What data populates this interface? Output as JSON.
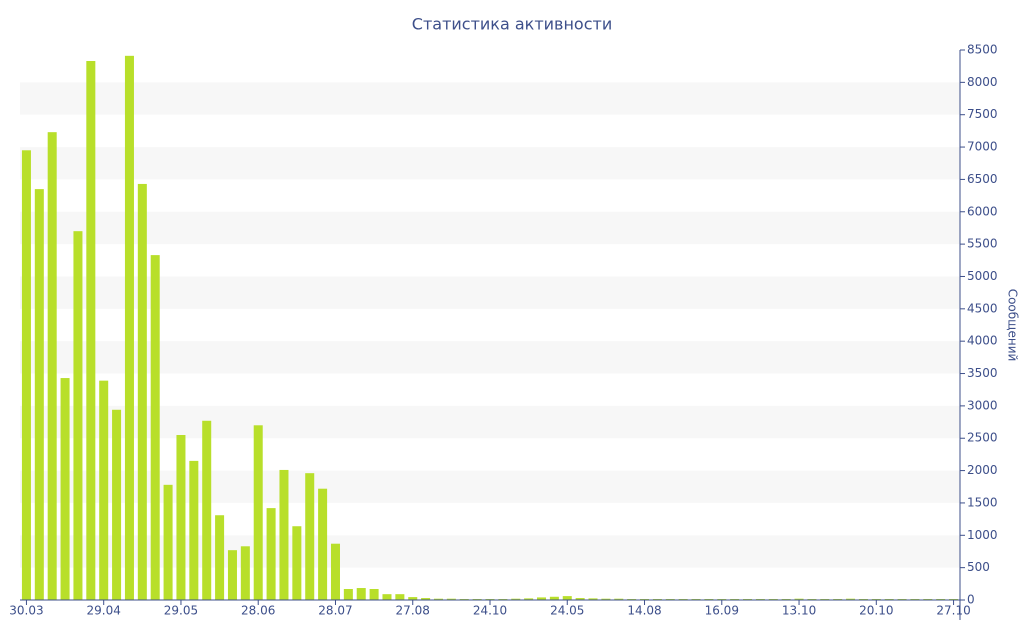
{
  "chart_data": {
    "type": "bar",
    "title": "Статистика активности",
    "y_axis_label": "Сообщений",
    "categories": [
      "30.03",
      null,
      null,
      null,
      null,
      null,
      "29.04",
      null,
      null,
      null,
      null,
      null,
      "29.05",
      null,
      null,
      null,
      null,
      null,
      "28.06",
      null,
      null,
      null,
      null,
      null,
      "28.07",
      null,
      null,
      null,
      null,
      null,
      "27.08",
      null,
      null,
      null,
      null,
      null,
      "24.10",
      null,
      null,
      null,
      null,
      null,
      "24.05",
      null,
      null,
      null,
      null,
      null,
      "14.08",
      null,
      null,
      null,
      null,
      null,
      "16.09",
      null,
      null,
      null,
      null,
      null,
      "13.10",
      null,
      null,
      null,
      null,
      null,
      "20.10",
      null,
      null,
      null,
      null,
      null,
      "27.10"
    ],
    "values": [
      6950,
      6350,
      7230,
      3430,
      5700,
      8330,
      3390,
      2940,
      8410,
      6430,
      5330,
      1780,
      2550,
      2150,
      2770,
      1310,
      770,
      830,
      2700,
      1420,
      2010,
      1140,
      1960,
      1720,
      870,
      170,
      185,
      170,
      90,
      90,
      45,
      30,
      20,
      20,
      15,
      15,
      15,
      15,
      20,
      25,
      40,
      50,
      60,
      30,
      25,
      20,
      20,
      15,
      15,
      15,
      15,
      15,
      15,
      15,
      15,
      15,
      15,
      15,
      15,
      15,
      20,
      15,
      15,
      15,
      20,
      15,
      15,
      15,
      15,
      15,
      15,
      15,
      15
    ],
    "color": "#b8df2a",
    "ylim": [
      0,
      8500
    ],
    "yticks": [
      0,
      500,
      1000,
      1500,
      2000,
      2500,
      3000,
      3500,
      4000,
      4500,
      5000,
      5500,
      6000,
      6500,
      7000,
      7500,
      8000,
      8500
    ],
    "grid": true,
    "y_axis_side": "right"
  }
}
